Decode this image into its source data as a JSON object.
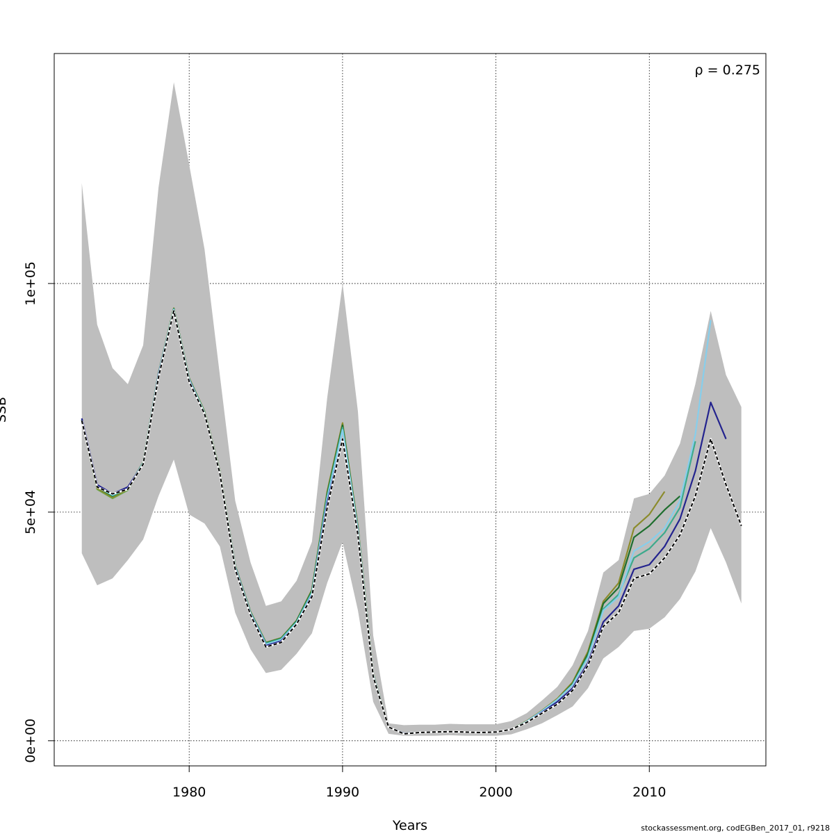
{
  "chart_data": {
    "type": "line",
    "title": "",
    "xlabel": "Years",
    "ylabel": "SSB",
    "xlim": [
      1971.2,
      2017.6
    ],
    "ylim": [
      -5500,
      150300
    ],
    "xticks": [
      1980,
      1990,
      2000,
      2010
    ],
    "xtick_labels": [
      "1980",
      "1990",
      "2000",
      "2010"
    ],
    "yticks": [
      0,
      50000,
      100000
    ],
    "ytick_labels": [
      "0e+00",
      "5e+04",
      "1e+05"
    ],
    "grid": true,
    "annotation": "ρ = 0.275",
    "band_color": "#bebebe",
    "band": {
      "x": [
        1973,
        1974,
        1975,
        1976,
        1977,
        1978,
        1979,
        1980,
        1981,
        1982,
        1983,
        1984,
        1985,
        1986,
        1987,
        1988,
        1989,
        1990,
        1991,
        1992,
        1993,
        1994,
        1995,
        1996,
        1997,
        1998,
        1999,
        2000,
        2001,
        2002,
        2003,
        2004,
        2005,
        2006,
        2007,
        2008,
        2009,
        2010,
        2011,
        2012,
        2013,
        2014,
        2015,
        2016
      ],
      "lower": [
        41000,
        34000,
        35500,
        39500,
        44000,
        53500,
        61500,
        49500,
        47500,
        42500,
        28000,
        20000,
        14800,
        15500,
        19000,
        23500,
        34500,
        43500,
        28500,
        8500,
        1500,
        1100,
        1100,
        1100,
        1200,
        1100,
        1100,
        1100,
        1400,
        2500,
        3800,
        5600,
        7500,
        11500,
        18000,
        20500,
        24000,
        24500,
        27000,
        31000,
        37000,
        46500,
        39000,
        30000
      ],
      "upper": [
        122000,
        91000,
        81500,
        78000,
        86500,
        121000,
        144000,
        126000,
        107500,
        80000,
        52500,
        39000,
        29500,
        30500,
        35000,
        43500,
        75000,
        100000,
        72000,
        23000,
        3800,
        3400,
        3500,
        3500,
        3700,
        3600,
        3600,
        3600,
        4300,
        6000,
        8800,
        11800,
        16500,
        24000,
        36800,
        39500,
        53000,
        54000,
        58000,
        65000,
        78000,
        94000,
        80000,
        73000
      ]
    },
    "series": [
      {
        "color": "#000000",
        "dashed": true,
        "x": [
          1973,
          1974,
          1975,
          1976,
          1977,
          1978,
          1979,
          1980,
          1981,
          1982,
          1983,
          1984,
          1985,
          1986,
          1987,
          1988,
          1989,
          1990,
          1991,
          1992,
          1993,
          1994,
          1995,
          1996,
          1997,
          1998,
          1999,
          2000,
          2001,
          2002,
          2003,
          2004,
          2005,
          2006,
          2007,
          2008,
          2009,
          2010,
          2011,
          2012,
          2013,
          2014,
          2015,
          2016
        ],
        "y": [
          70000,
          55500,
          54000,
          55000,
          60500,
          79500,
          94000,
          78500,
          71500,
          58500,
          37500,
          27500,
          20500,
          21500,
          25500,
          31500,
          51000,
          66000,
          45000,
          14000,
          3000,
          1500,
          1800,
          1900,
          2000,
          1900,
          1800,
          1900,
          2500,
          4000,
          6000,
          8000,
          11000,
          16500,
          25000,
          28000,
          35500,
          36500,
          40000,
          45000,
          53500,
          66000,
          56000,
          47000
        ]
      },
      {
        "color": "#23238e",
        "x": [
          1973,
          1974,
          1975,
          1976,
          1977,
          1978,
          1979,
          1980,
          1981,
          1982,
          1983,
          1984,
          1985,
          1986,
          1987,
          1988,
          1989,
          1990,
          1991,
          1992,
          1993,
          1994,
          1995,
          1996,
          1997,
          1998,
          1999,
          2000,
          2001,
          2002,
          2003,
          2004,
          2005,
          2006,
          2007,
          2008,
          2009,
          2010,
          2011,
          2012,
          2013,
          2014,
          2015
        ],
        "y": [
          70500,
          56000,
          54000,
          55500,
          60500,
          80000,
          94000,
          78800,
          71500,
          58500,
          37800,
          27700,
          20800,
          21800,
          25500,
          31800,
          52000,
          66000,
          45500,
          14200,
          3000,
          1600,
          1800,
          1900,
          2000,
          1900,
          1800,
          1900,
          2500,
          4000,
          6200,
          8500,
          11500,
          17000,
          26000,
          29500,
          37500,
          38500,
          42500,
          48500,
          59000,
          74000,
          66000
        ]
      },
      {
        "color": "#87ceeb",
        "x": [
          1973,
          1974,
          1975,
          1976,
          1977,
          1978,
          1979,
          1980,
          1981,
          1982,
          1983,
          1984,
          1985,
          1986,
          1987,
          1988,
          1989,
          1990,
          1991,
          1992,
          1993,
          1994,
          1995,
          1996,
          1997,
          1998,
          1999,
          2000,
          2001,
          2002,
          2003,
          2004,
          2005,
          2006,
          2007,
          2008,
          2009,
          2010,
          2011,
          2012,
          2013,
          2014
        ],
        "y": [
          70300,
          55800,
          53800,
          55300,
          60700,
          80200,
          94300,
          79000,
          71700,
          58700,
          38000,
          27900,
          21100,
          22100,
          25800,
          32200,
          53000,
          68000,
          46000,
          14400,
          3000,
          1600,
          1800,
          1900,
          2000,
          1900,
          1800,
          1900,
          2500,
          4200,
          6500,
          9000,
          12200,
          18200,
          28500,
          31500,
          41500,
          43500,
          46500,
          52500,
          67000,
          92000
        ]
      },
      {
        "color": "#3caa8c",
        "x": [
          1973,
          1974,
          1975,
          1976,
          1977,
          1978,
          1979,
          1980,
          1981,
          1982,
          1983,
          1984,
          1985,
          1986,
          1987,
          1988,
          1989,
          1990,
          1991,
          1992,
          1993,
          1994,
          1995,
          1996,
          1997,
          1998,
          1999,
          2000,
          2001,
          2002,
          2003,
          2004,
          2005,
          2006,
          2007,
          2008,
          2009,
          2010,
          2011,
          2012,
          2013
        ],
        "y": [
          70200,
          55600,
          53600,
          55200,
          60800,
          80300,
          94400,
          79100,
          71800,
          58800,
          38100,
          28000,
          21300,
          22300,
          26000,
          32500,
          53500,
          68500,
          46200,
          14400,
          3000,
          1600,
          1800,
          1900,
          2000,
          1900,
          1800,
          1900,
          2500,
          4200,
          6500,
          9000,
          12300,
          18500,
          28800,
          32000,
          40000,
          42000,
          45500,
          51000,
          65500
        ]
      },
      {
        "color": "#1e6e2e",
        "x": [
          1973,
          1974,
          1975,
          1976,
          1977,
          1978,
          1979,
          1980,
          1981,
          1982,
          1983,
          1984,
          1985,
          1986,
          1987,
          1988,
          1989,
          1990,
          1991,
          1992,
          1993,
          1994,
          1995,
          1996,
          1997,
          1998,
          1999,
          2000,
          2001,
          2002,
          2003,
          2004,
          2005,
          2006,
          2007,
          2008,
          2009,
          2010,
          2011,
          2012
        ],
        "y": [
          70200,
          55500,
          53500,
          55200,
          60900,
          80300,
          94500,
          79200,
          71900,
          58900,
          38200,
          28100,
          21400,
          22400,
          26200,
          32800,
          54000,
          69000,
          46500,
          14500,
          3000,
          1600,
          1800,
          1900,
          2000,
          1900,
          1800,
          1900,
          2500,
          4200,
          6500,
          9000,
          12500,
          19000,
          30000,
          33500,
          44500,
          47000,
          50500,
          53500
        ]
      },
      {
        "color": "#8b8b2b",
        "x": [
          1973,
          1974,
          1975,
          1976,
          1977,
          1978,
          1979,
          1980,
          1981,
          1982,
          1983,
          1984,
          1985,
          1986,
          1987,
          1988,
          1989,
          1990,
          1991,
          1992,
          1993,
          1994,
          1995,
          1996,
          1997,
          1998,
          1999,
          2000,
          2001,
          2002,
          2003,
          2004,
          2005,
          2006,
          2007,
          2008,
          2009,
          2010,
          2011
        ],
        "y": [
          70100,
          55200,
          53200,
          55000,
          60900,
          80400,
          94600,
          79300,
          72000,
          59000,
          38300,
          28200,
          21500,
          22500,
          26300,
          33000,
          54500,
          69500,
          46800,
          14600,
          3000,
          1600,
          1800,
          1900,
          2000,
          1900,
          1800,
          1900,
          2500,
          4300,
          6600,
          9200,
          12800,
          19500,
          30500,
          34500,
          46500,
          49500,
          54500
        ]
      },
      {
        "color": "#6aa84f",
        "x": [
          1973,
          1974,
          1975,
          1976,
          1977,
          1978,
          1979,
          1980,
          1981,
          1982,
          1983,
          1984,
          1985,
          1986,
          1987,
          1988,
          1989,
          1990,
          1991,
          1992,
          1993
        ],
        "y": [
          70000,
          55000,
          53000,
          54800,
          60600,
          80100,
          94300,
          79100,
          71800,
          58800,
          38000,
          28000,
          21200,
          22200,
          26000,
          32600,
          53500,
          68800,
          46300,
          14400,
          3000
        ]
      }
    ]
  },
  "footer": "stockassessment.org, codEGBen_2017_01, r9218"
}
